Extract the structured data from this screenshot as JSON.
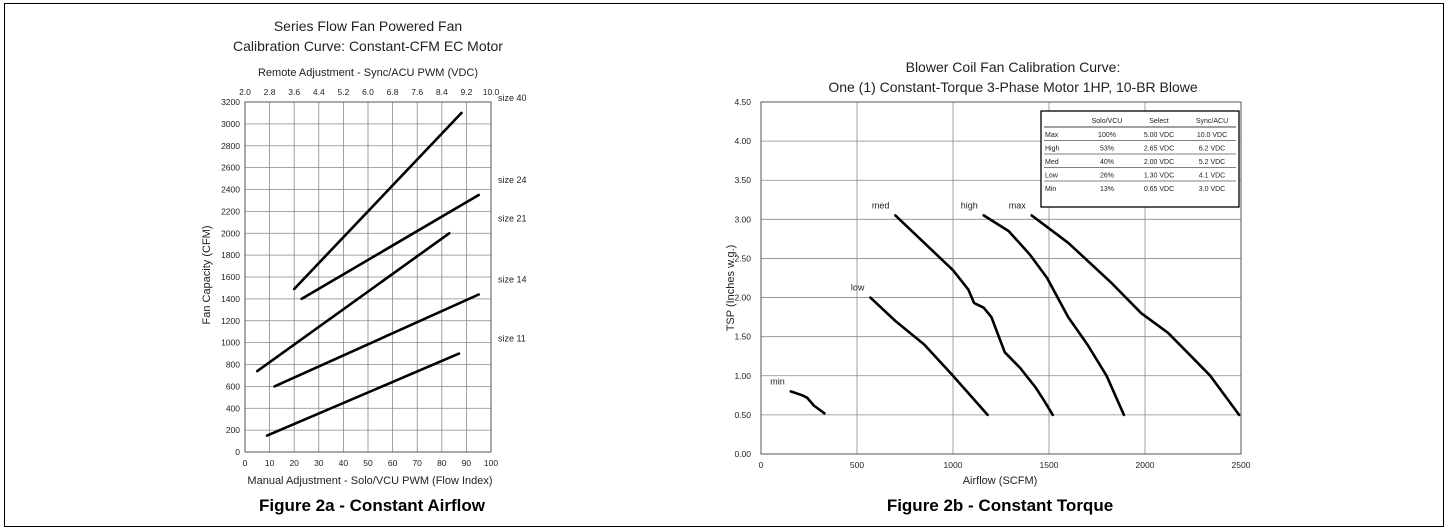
{
  "chart_data": [
    {
      "type": "line",
      "figure_caption": "Figure 2a - Constant Airflow",
      "title_lines": [
        "Series Flow Fan Powered Fan",
        "Calibration Curve: Constant-CFM EC Motor"
      ],
      "xlabel": "Manual Adjustment - Solo/VCU PWM (Flow Index)",
      "ylabel": "Fan Capacity (CFM)",
      "x2label": "Remote Adjustment - Sync/ACU PWM (VDC)",
      "xlim": [
        0,
        100
      ],
      "ylim": [
        0,
        3200
      ],
      "x_ticks": [
        "0",
        "10",
        "20",
        "30",
        "40",
        "50",
        "60",
        "70",
        "80",
        "90",
        "100"
      ],
      "y_ticks": [
        "0",
        "200",
        "400",
        "600",
        "800",
        "1000",
        "1200",
        "1400",
        "1600",
        "1800",
        "2000",
        "2200",
        "2400",
        "2600",
        "2800",
        "3000",
        "3200"
      ],
      "x2_ticks": [
        "2.0",
        "2.8",
        "3.6",
        "4.4",
        "5.2",
        "6.0",
        "6.8",
        "7.6",
        "8.4",
        "9.2",
        "10.0"
      ],
      "grid": true,
      "series": [
        {
          "name": "size 40",
          "x": [
            20,
            88
          ],
          "y": [
            1490,
            3100
          ]
        },
        {
          "name": "size 24",
          "x": [
            23,
            95
          ],
          "y": [
            1400,
            2350
          ]
        },
        {
          "name": "size 21",
          "x": [
            5,
            83
          ],
          "y": [
            740,
            2000
          ]
        },
        {
          "name": "size 14",
          "x": [
            12,
            95
          ],
          "y": [
            600,
            1440
          ]
        },
        {
          "name": "size 11",
          "x": [
            9,
            87
          ],
          "y": [
            150,
            900
          ]
        }
      ]
    },
    {
      "type": "line",
      "figure_caption": "Figure 2b - Constant Torque",
      "title_lines": [
        "Blower Coil Fan Calibration Curve:",
        "One (1) Constant-Torque 3-Phase Motor 1HP, 10-BR Blowe"
      ],
      "xlabel": "Airflow (SCFM)",
      "ylabel": "TSP (Inches w.g.)",
      "xlim": [
        0,
        2500
      ],
      "ylim": [
        0,
        4.5
      ],
      "x_ticks": [
        "0",
        "500",
        "1000",
        "1500",
        "2000",
        "2500"
      ],
      "y_ticks": [
        "0.00",
        "0.50",
        "1.00",
        "1.50",
        "2.00",
        "2.50",
        "3.00",
        "3.50",
        "4.00",
        "4.50"
      ],
      "grid": true,
      "series": [
        {
          "name": "min",
          "x": [
            155,
            215,
            240,
            275,
            330
          ],
          "y": [
            0.8,
            0.75,
            0.72,
            0.62,
            0.52
          ]
        },
        {
          "name": "low",
          "x": [
            570,
            700,
            850,
            1000,
            1180
          ],
          "y": [
            2.0,
            1.7,
            1.4,
            1.0,
            0.5
          ]
        },
        {
          "name": "med",
          "x": [
            700,
            850,
            1000,
            1080,
            1110,
            1160,
            1200,
            1270,
            1350,
            1430,
            1470,
            1520
          ],
          "y": [
            3.05,
            2.7,
            2.35,
            2.1,
            1.93,
            1.87,
            1.75,
            1.3,
            1.1,
            0.85,
            0.7,
            0.5
          ]
        },
        {
          "name": "high",
          "x": [
            1160,
            1290,
            1400,
            1490,
            1600,
            1700,
            1800,
            1890
          ],
          "y": [
            3.05,
            2.85,
            2.55,
            2.25,
            1.75,
            1.4,
            1.0,
            0.5
          ]
        },
        {
          "name": "max",
          "x": [
            1410,
            1600,
            1820,
            1980,
            2120,
            2240,
            2340,
            2490
          ],
          "y": [
            3.05,
            2.7,
            2.2,
            1.8,
            1.55,
            1.25,
            1.0,
            0.5
          ]
        }
      ],
      "table": {
        "columns": [
          "",
          "Solo/VCU",
          "Select",
          "Sync/ACU"
        ],
        "rows": [
          [
            "Max",
            "100%",
            "5.00 VDC",
            "10.0 VDC"
          ],
          [
            "High",
            "53%",
            "2.65 VDC",
            "6.2 VDC"
          ],
          [
            "Med",
            "40%",
            "2.00 VDC",
            "5.2 VDC"
          ],
          [
            "Low",
            "26%",
            "1.30 VDC",
            "4.1 VDC"
          ],
          [
            "Min",
            "13%",
            "0.65 VDC",
            "3.0 VDC"
          ]
        ]
      }
    }
  ]
}
